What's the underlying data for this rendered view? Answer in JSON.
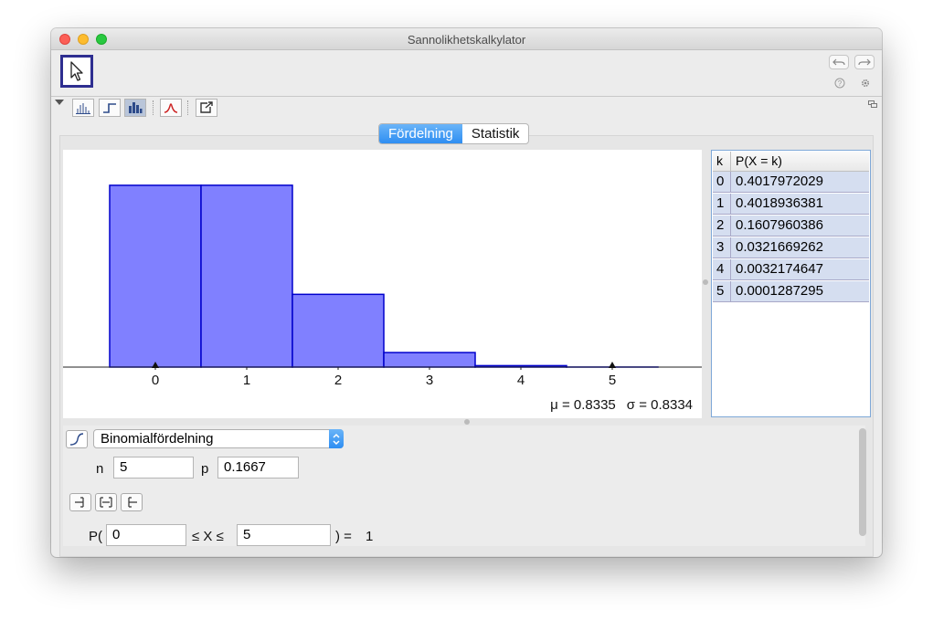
{
  "window": {
    "title": "Sannolikhetskalkylator"
  },
  "tabs": [
    {
      "label": "Fördelning"
    },
    {
      "label": "Statistik"
    }
  ],
  "stats": {
    "mu": "μ = 0.8335",
    "sigma": "σ = 0.8334"
  },
  "table": {
    "headers": {
      "k": "k",
      "p": "P(X = k)"
    },
    "rows": [
      {
        "k": "0",
        "p": "0.4017972029"
      },
      {
        "k": "1",
        "p": "0.4018936381"
      },
      {
        "k": "2",
        "p": "0.1607960386"
      },
      {
        "k": "3",
        "p": "0.0321669262"
      },
      {
        "k": "4",
        "p": "0.0032174647"
      },
      {
        "k": "5",
        "p": "0.0001287295"
      }
    ]
  },
  "distribution": {
    "selected": "Binomialfördelning",
    "n_label": "n",
    "n_value": "5",
    "p_label": "p",
    "p_value": "0.1667"
  },
  "probability": {
    "prefix": "P(",
    "lower": "0",
    "middle": "≤ X ≤",
    "upper": "5",
    "suffix": ") =",
    "result": "1"
  },
  "icons": [
    "move-tool-icon",
    "undo-icon",
    "redo-icon",
    "help-icon",
    "gear-icon",
    "bar-graph-icon",
    "step-graph-icon",
    "histogram-icon",
    "normal-overlay-icon",
    "export-icon",
    "cdf-icon",
    "left-sided-icon",
    "interval-icon",
    "right-sided-icon"
  ],
  "colors": {
    "bar_fill": "#8080ff",
    "bar_stroke": "#0000cc",
    "tab_active": "#2e8ef2",
    "table_row": "#d5def0"
  },
  "chart_data": {
    "type": "bar",
    "categories": [
      "0",
      "1",
      "2",
      "3",
      "4",
      "5"
    ],
    "values": [
      0.4017972029,
      0.4018936381,
      0.1607960386,
      0.0321669262,
      0.0032174647,
      0.0001287295
    ],
    "title": "",
    "xlabel": "",
    "ylabel": "",
    "ylim": [
      0,
      0.44
    ],
    "markers": [
      0,
      5
    ]
  }
}
